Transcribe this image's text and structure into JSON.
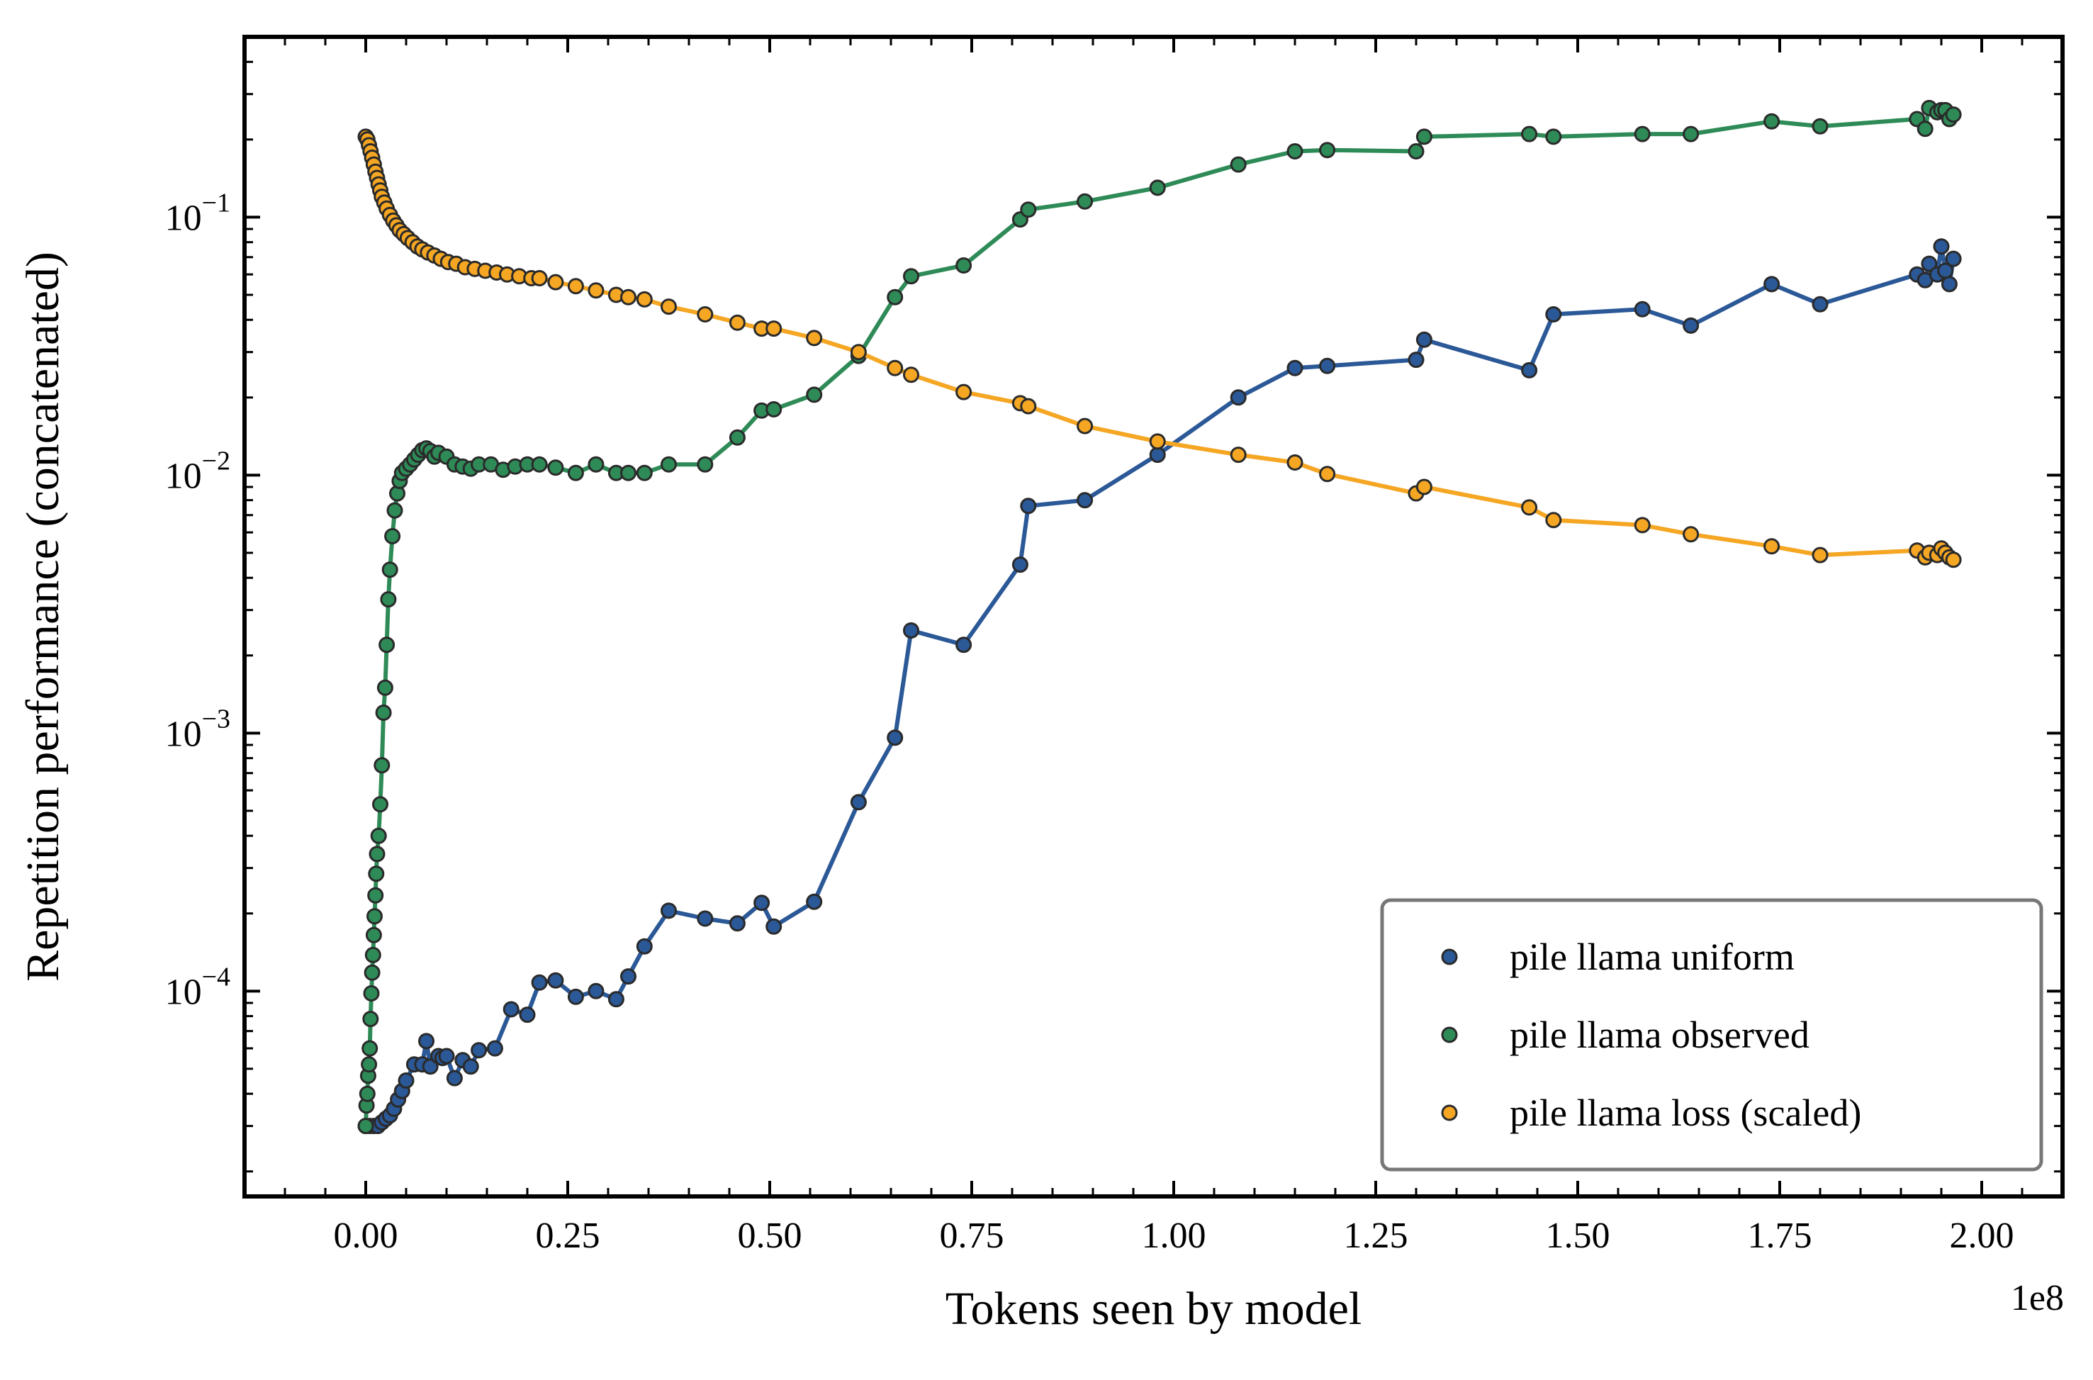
{
  "chart_data": {
    "type": "line",
    "xlabel": "Tokens seen by model",
    "ylabel": "Repetition performance (concatenated)",
    "x_offset_text": "1e8",
    "x_scale_factor": 100000000,
    "y_scale": "log",
    "xlim": [
      -0.15,
      2.1
    ],
    "ylim": [
      1.6e-05,
      0.5
    ],
    "x_ticks": [
      0.0,
      0.25,
      0.5,
      0.75,
      1.0,
      1.25,
      1.5,
      1.75,
      2.0
    ],
    "x_tick_labels": [
      "0.00",
      "0.25",
      "0.50",
      "0.75",
      "1.00",
      "1.25",
      "1.50",
      "1.75",
      "2.00"
    ],
    "y_ticks": [
      0.1,
      0.01,
      0.001,
      0.0001
    ],
    "y_tick_labels": [
      {
        "base": "10",
        "exp": "−1"
      },
      {
        "base": "10",
        "exp": "−2"
      },
      {
        "base": "10",
        "exp": "−3"
      },
      {
        "base": "10",
        "exp": "−4"
      }
    ],
    "grid": false,
    "legend_position": "bottom-right",
    "series": [
      {
        "name": "pile llama uniform",
        "color": "#2b5896",
        "x": [
          0.0,
          0.005,
          0.01,
          0.015,
          0.02,
          0.025,
          0.03,
          0.035,
          0.04,
          0.045,
          0.05,
          0.06,
          0.07,
          0.075,
          0.08,
          0.09,
          0.095,
          0.1,
          0.11,
          0.12,
          0.13,
          0.14,
          0.16,
          0.18,
          0.2,
          0.215,
          0.235,
          0.26,
          0.285,
          0.31,
          0.325,
          0.345,
          0.375,
          0.42,
          0.46,
          0.49,
          0.505,
          0.555,
          0.61,
          0.655,
          0.675,
          0.74,
          0.81,
          0.82,
          0.89,
          0.98,
          1.08,
          1.15,
          1.19,
          1.3,
          1.31,
          1.44,
          1.47,
          1.58,
          1.64,
          1.74,
          1.8,
          1.92,
          1.93,
          1.935,
          1.945,
          1.95,
          1.955,
          1.96,
          1.965
        ],
        "y": [
          3e-05,
          3e-05,
          3e-05,
          3e-05,
          3.1e-05,
          3.2e-05,
          3.3e-05,
          3.5e-05,
          3.8e-05,
          4.1e-05,
          4.5e-05,
          5.2e-05,
          5.2e-05,
          6.4e-05,
          5.1e-05,
          5.6e-05,
          5.5e-05,
          5.6e-05,
          4.6e-05,
          5.4e-05,
          5.1e-05,
          5.9e-05,
          6e-05,
          8.5e-05,
          8.1e-05,
          0.000108,
          0.00011,
          9.5e-05,
          0.0001,
          9.3e-05,
          0.000114,
          0.000149,
          0.000205,
          0.000191,
          0.000183,
          0.00022,
          0.000178,
          0.000222,
          0.00054,
          0.00096,
          0.0025,
          0.0022,
          0.0045,
          0.0076,
          0.008,
          0.012,
          0.02,
          0.026,
          0.0265,
          0.028,
          0.0335,
          0.0255,
          0.042,
          0.044,
          0.038,
          0.055,
          0.046,
          0.06,
          0.057,
          0.066,
          0.06,
          0.077,
          0.062,
          0.055,
          0.069
        ]
      },
      {
        "name": "pile llama observed",
        "color": "#2e8b57",
        "x": [
          0.0,
          0.001,
          0.002,
          0.003,
          0.004,
          0.005,
          0.006,
          0.007,
          0.008,
          0.009,
          0.01,
          0.011,
          0.012,
          0.013,
          0.014,
          0.016,
          0.018,
          0.02,
          0.022,
          0.024,
          0.026,
          0.028,
          0.03,
          0.033,
          0.036,
          0.039,
          0.042,
          0.045,
          0.05,
          0.055,
          0.06,
          0.065,
          0.07,
          0.075,
          0.08,
          0.085,
          0.09,
          0.1,
          0.11,
          0.12,
          0.13,
          0.14,
          0.155,
          0.17,
          0.185,
          0.2,
          0.215,
          0.235,
          0.26,
          0.285,
          0.31,
          0.325,
          0.345,
          0.375,
          0.42,
          0.46,
          0.49,
          0.505,
          0.555,
          0.61,
          0.655,
          0.675,
          0.74,
          0.81,
          0.82,
          0.89,
          0.98,
          1.08,
          1.15,
          1.19,
          1.3,
          1.31,
          1.44,
          1.47,
          1.58,
          1.64,
          1.74,
          1.8,
          1.92,
          1.93,
          1.935,
          1.945,
          1.95,
          1.955,
          1.96,
          1.965
        ],
        "y": [
          3e-05,
          3.6e-05,
          4e-05,
          4.7e-05,
          5.2e-05,
          6e-05,
          7.8e-05,
          9.8e-05,
          0.000118,
          0.000138,
          0.000165,
          0.000195,
          0.000235,
          0.000285,
          0.00034,
          0.0004,
          0.00053,
          0.00075,
          0.0012,
          0.0015,
          0.0022,
          0.0033,
          0.0043,
          0.0058,
          0.0073,
          0.0085,
          0.0095,
          0.0102,
          0.0106,
          0.011,
          0.0115,
          0.012,
          0.0125,
          0.0127,
          0.0124,
          0.0118,
          0.0122,
          0.0118,
          0.011,
          0.0108,
          0.0106,
          0.011,
          0.011,
          0.0105,
          0.0108,
          0.011,
          0.011,
          0.0107,
          0.0102,
          0.011,
          0.0102,
          0.0102,
          0.0102,
          0.011,
          0.011,
          0.014,
          0.0178,
          0.018,
          0.0205,
          0.029,
          0.049,
          0.059,
          0.065,
          0.098,
          0.107,
          0.115,
          0.13,
          0.16,
          0.18,
          0.182,
          0.18,
          0.205,
          0.21,
          0.205,
          0.21,
          0.21,
          0.235,
          0.225,
          0.24,
          0.22,
          0.265,
          0.255,
          0.26,
          0.26,
          0.24,
          0.25
        ]
      },
      {
        "name": "pile llama loss (scaled)",
        "color": "#f5a623",
        "x": [
          0.0,
          0.002,
          0.004,
          0.006,
          0.008,
          0.01,
          0.012,
          0.014,
          0.016,
          0.018,
          0.02,
          0.023,
          0.026,
          0.03,
          0.034,
          0.038,
          0.042,
          0.047,
          0.052,
          0.058,
          0.064,
          0.07,
          0.077,
          0.085,
          0.093,
          0.102,
          0.112,
          0.123,
          0.135,
          0.148,
          0.162,
          0.175,
          0.19,
          0.205,
          0.215,
          0.235,
          0.26,
          0.285,
          0.31,
          0.325,
          0.345,
          0.375,
          0.42,
          0.46,
          0.49,
          0.505,
          0.555,
          0.61,
          0.655,
          0.675,
          0.74,
          0.81,
          0.82,
          0.89,
          0.98,
          1.08,
          1.15,
          1.19,
          1.3,
          1.31,
          1.44,
          1.47,
          1.58,
          1.64,
          1.74,
          1.8,
          1.92,
          1.93,
          1.935,
          1.945,
          1.95,
          1.955,
          1.96,
          1.965
        ],
        "y": [
          0.205,
          0.2,
          0.19,
          0.18,
          0.17,
          0.16,
          0.15,
          0.142,
          0.134,
          0.127,
          0.12,
          0.114,
          0.108,
          0.102,
          0.097,
          0.093,
          0.089,
          0.086,
          0.083,
          0.08,
          0.077,
          0.075,
          0.073,
          0.071,
          0.069,
          0.067,
          0.066,
          0.064,
          0.063,
          0.062,
          0.061,
          0.06,
          0.059,
          0.058,
          0.058,
          0.056,
          0.054,
          0.052,
          0.05,
          0.049,
          0.048,
          0.045,
          0.042,
          0.039,
          0.037,
          0.037,
          0.034,
          0.03,
          0.026,
          0.0245,
          0.021,
          0.019,
          0.0185,
          0.0155,
          0.0135,
          0.012,
          0.0112,
          0.0101,
          0.0085,
          0.009,
          0.0075,
          0.0067,
          0.0064,
          0.0059,
          0.0053,
          0.0049,
          0.0051,
          0.0048,
          0.005,
          0.0049,
          0.0052,
          0.005,
          0.0048,
          0.0047
        ]
      }
    ]
  }
}
